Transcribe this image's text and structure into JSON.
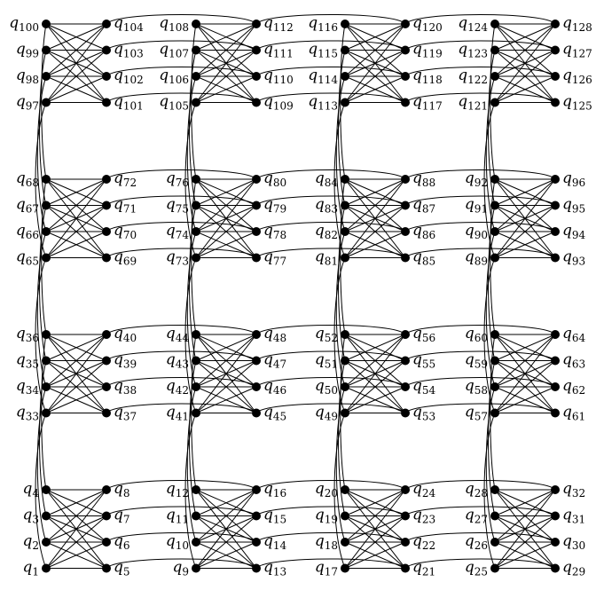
{
  "diagram": {
    "type": "chimera-graph",
    "grid": {
      "rows": 4,
      "cols": 4
    },
    "qubits_per_side": 4,
    "node_color": "#000000",
    "edge_color": "#000000",
    "label_prefix": "q",
    "blocks": [
      {
        "row": 0,
        "col": 0,
        "left": [
          100,
          99,
          98,
          97
        ],
        "right": [
          104,
          103,
          102,
          101
        ]
      },
      {
        "row": 0,
        "col": 1,
        "left": [
          108,
          107,
          106,
          105
        ],
        "right": [
          112,
          111,
          110,
          109
        ]
      },
      {
        "row": 0,
        "col": 2,
        "left": [
          116,
          115,
          114,
          113
        ],
        "right": [
          120,
          119,
          118,
          117
        ]
      },
      {
        "row": 0,
        "col": 3,
        "left": [
          124,
          123,
          122,
          121
        ],
        "right": [
          128,
          127,
          126,
          125
        ]
      },
      {
        "row": 1,
        "col": 0,
        "left": [
          68,
          67,
          66,
          65
        ],
        "right": [
          72,
          71,
          70,
          69
        ]
      },
      {
        "row": 1,
        "col": 1,
        "left": [
          76,
          75,
          74,
          73
        ],
        "right": [
          80,
          79,
          78,
          77
        ]
      },
      {
        "row": 1,
        "col": 2,
        "left": [
          84,
          83,
          82,
          81
        ],
        "right": [
          88,
          87,
          86,
          85
        ]
      },
      {
        "row": 1,
        "col": 3,
        "left": [
          92,
          91,
          90,
          89
        ],
        "right": [
          96,
          95,
          94,
          93
        ]
      },
      {
        "row": 2,
        "col": 0,
        "left": [
          36,
          35,
          34,
          33
        ],
        "right": [
          40,
          39,
          38,
          37
        ]
      },
      {
        "row": 2,
        "col": 1,
        "left": [
          44,
          43,
          42,
          41
        ],
        "right": [
          48,
          47,
          46,
          45
        ]
      },
      {
        "row": 2,
        "col": 2,
        "left": [
          52,
          51,
          50,
          49
        ],
        "right": [
          56,
          55,
          54,
          53
        ]
      },
      {
        "row": 2,
        "col": 3,
        "left": [
          60,
          59,
          58,
          57
        ],
        "right": [
          64,
          63,
          62,
          61
        ]
      },
      {
        "row": 3,
        "col": 0,
        "left": [
          4,
          3,
          2,
          1
        ],
        "right": [
          8,
          7,
          6,
          5
        ]
      },
      {
        "row": 3,
        "col": 1,
        "left": [
          12,
          11,
          10,
          9
        ],
        "right": [
          16,
          15,
          14,
          13
        ]
      },
      {
        "row": 3,
        "col": 2,
        "left": [
          20,
          19,
          18,
          17
        ],
        "right": [
          24,
          23,
          22,
          21
        ]
      },
      {
        "row": 3,
        "col": 3,
        "left": [
          28,
          27,
          26,
          25
        ],
        "right": [
          32,
          31,
          30,
          29
        ]
      }
    ]
  }
}
